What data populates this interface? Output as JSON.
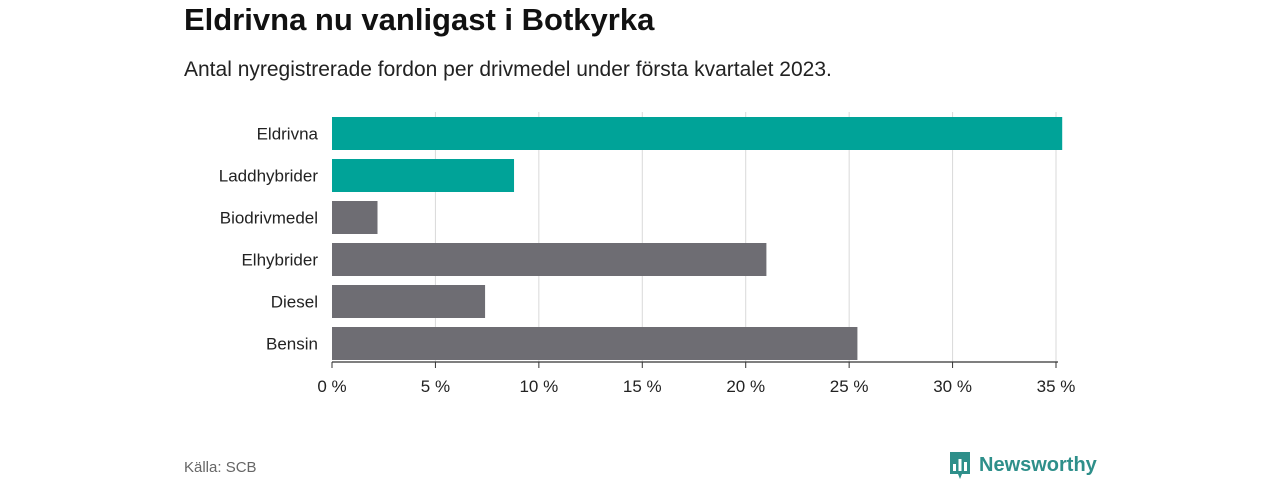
{
  "header": {
    "title": "Eldrivna nu vanligast i Botkyrka",
    "subtitle": "Antal nyregistrerade fordon per drivmedel under första kvartalet 2023."
  },
  "footer": {
    "source": "Källa: SCB",
    "brand": "Newsworthy",
    "brand_icon": "bar-chart-icon"
  },
  "colors": {
    "highlight": "#00a398",
    "default": "#6e6d73",
    "grid": "#d9d9d9",
    "brand": "#2e8f8a"
  },
  "chart_data": {
    "type": "bar",
    "orientation": "horizontal",
    "categories": [
      "Eldrivna",
      "Laddhybrider",
      "Biodrivmedel",
      "Elhybrider",
      "Diesel",
      "Bensin"
    ],
    "values": [
      35.3,
      8.8,
      2.2,
      21.0,
      7.4,
      25.4
    ],
    "highlighted": [
      true,
      true,
      false,
      false,
      false,
      false
    ],
    "unit": "%",
    "xlim": [
      0,
      35
    ],
    "ticks": [
      0,
      5,
      10,
      15,
      20,
      25,
      30,
      35
    ],
    "tick_labels": [
      "0 %",
      "5 %",
      "10 %",
      "15 %",
      "20 %",
      "25 %",
      "30 %",
      "35 %"
    ],
    "grid": true
  }
}
